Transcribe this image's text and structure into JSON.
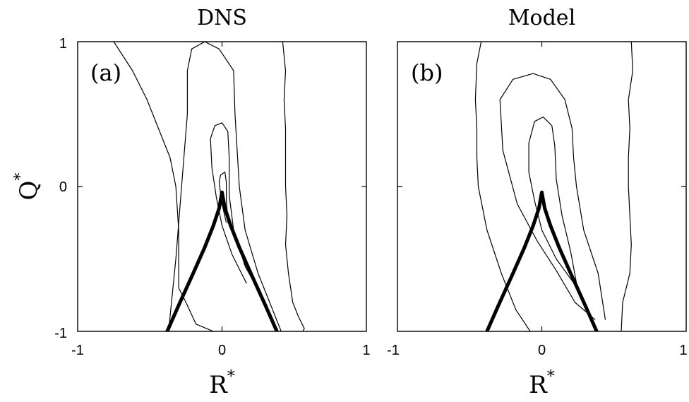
{
  "chart_data": [
    {
      "type": "line",
      "title": "DNS",
      "panel_label": "(a)",
      "xlabel": "R",
      "xlabel_sup": "*",
      "ylabel": "Q",
      "ylabel_sup": "*",
      "xlim": [
        -1,
        1
      ],
      "ylim": [
        -1,
        1
      ],
      "x_ticks": [
        "-1",
        "0",
        "1"
      ],
      "y_ticks": [
        "1",
        "0",
        "-1"
      ],
      "grid": false,
      "series": [
        {
          "role": "contour-outer",
          "x": [
            -0.75,
            -0.62,
            -0.52,
            -0.44,
            -0.36,
            -0.32,
            -0.3,
            -0.3,
            -0.25,
            -0.18,
            -0.06
          ],
          "y": [
            1.0,
            0.8,
            0.6,
            0.4,
            0.2,
            0.0,
            -0.3,
            -0.7,
            -0.8,
            -0.95,
            -1.0
          ]
        },
        {
          "role": "contour-outer",
          "x": [
            0.42,
            0.44,
            0.43,
            0.44,
            0.44,
            0.44,
            0.45,
            0.44,
            0.46,
            0.49,
            0.53,
            0.57,
            0.56
          ],
          "y": [
            1.0,
            0.8,
            0.6,
            0.4,
            0.2,
            0.0,
            -0.2,
            -0.4,
            -0.6,
            -0.8,
            -0.9,
            -0.98,
            -1.0
          ]
        },
        {
          "role": "contour-middle",
          "x": [
            -0.37,
            -0.32,
            -0.28,
            -0.24,
            -0.24,
            -0.21,
            -0.12,
            -0.02,
            0.08,
            0.09,
            0.12,
            0.16,
            0.25,
            0.35,
            0.41
          ],
          "y": [
            -1.0,
            -0.5,
            0.0,
            0.5,
            0.8,
            0.95,
            1.0,
            0.95,
            0.8,
            0.5,
            0.0,
            -0.3,
            -0.6,
            -0.85,
            -1.0
          ]
        },
        {
          "role": "contour-inner",
          "x": [
            0.17,
            0.07,
            0.0,
            -0.04,
            -0.07,
            -0.08,
            -0.05,
            0.0,
            0.04,
            0.05,
            0.05,
            0.08,
            0.16,
            0.27,
            0.39
          ],
          "y": [
            -0.67,
            -0.47,
            -0.27,
            -0.07,
            0.13,
            0.33,
            0.42,
            0.44,
            0.38,
            0.2,
            -0.06,
            -0.3,
            -0.55,
            -0.75,
            -1.0
          ]
        },
        {
          "role": "contour-innermost",
          "x": [
            0.03,
            0.0,
            -0.02,
            -0.01,
            0.02,
            0.03,
            0.03,
            0.04
          ],
          "y": [
            -0.25,
            -0.12,
            0.03,
            0.08,
            0.1,
            0.03,
            -0.08,
            -0.25
          ]
        },
        {
          "role": "vieillefosse-line",
          "x": [
            -0.38,
            -0.3,
            -0.2,
            -0.12,
            -0.06,
            -0.02,
            0.0,
            0.02,
            0.06,
            0.12,
            0.2,
            0.3,
            0.38
          ],
          "y": [
            -1.0,
            -0.82,
            -0.6,
            -0.42,
            -0.27,
            -0.15,
            -0.04,
            -0.15,
            -0.27,
            -0.42,
            -0.6,
            -0.82,
            -1.0
          ]
        }
      ]
    },
    {
      "type": "line",
      "title": "Model",
      "panel_label": "(b)",
      "xlabel": "R",
      "xlabel_sup": "*",
      "ylabel": "",
      "xlim": [
        -1,
        1
      ],
      "ylim": [
        -1,
        1
      ],
      "x_ticks": [
        "-1",
        "0",
        "1"
      ],
      "y_ticks": [],
      "grid": false,
      "series": [
        {
          "role": "contour-outer",
          "x": [
            -0.42,
            -0.45,
            -0.46,
            -0.45,
            -0.45,
            -0.44,
            -0.42,
            -0.38,
            -0.28,
            -0.18,
            -0.08
          ],
          "y": [
            1.0,
            0.85,
            0.6,
            0.4,
            0.2,
            0.0,
            -0.1,
            -0.3,
            -0.6,
            -0.85,
            -1.0
          ]
        },
        {
          "role": "contour-outer",
          "x": [
            0.62,
            0.63,
            0.6,
            0.61,
            0.6,
            0.6,
            0.61,
            0.62,
            0.61,
            0.56,
            0.55
          ],
          "y": [
            1.0,
            0.8,
            0.6,
            0.4,
            0.2,
            0.0,
            -0.2,
            -0.4,
            -0.6,
            -0.8,
            -1.0
          ]
        },
        {
          "role": "contour-middle",
          "x": [
            0.37,
            0.23,
            0.1,
            -0.03,
            -0.17,
            -0.27,
            -0.29,
            -0.2,
            -0.06,
            0.06,
            0.16,
            0.21,
            0.22,
            0.24,
            0.29,
            0.39,
            0.44
          ],
          "y": [
            -0.92,
            -0.8,
            -0.58,
            -0.38,
            -0.12,
            0.25,
            0.6,
            0.74,
            0.78,
            0.74,
            0.6,
            0.4,
            0.2,
            0.0,
            -0.3,
            -0.6,
            -0.92
          ]
        },
        {
          "role": "contour-inner",
          "x": [
            0.26,
            0.1,
            0.0,
            -0.05,
            -0.09,
            -0.09,
            -0.05,
            0.01,
            0.07,
            0.09,
            0.1,
            0.14,
            0.2,
            0.25
          ],
          "y": [
            -0.72,
            -0.5,
            -0.3,
            -0.1,
            0.1,
            0.3,
            0.45,
            0.48,
            0.42,
            0.28,
            0.05,
            -0.2,
            -0.45,
            -0.72
          ]
        },
        {
          "role": "vieillefosse-line",
          "x": [
            -0.38,
            -0.3,
            -0.2,
            -0.12,
            -0.06,
            -0.02,
            0.0,
            0.02,
            0.06,
            0.12,
            0.2,
            0.3,
            0.38
          ],
          "y": [
            -1.0,
            -0.82,
            -0.6,
            -0.42,
            -0.27,
            -0.15,
            -0.04,
            -0.15,
            -0.27,
            -0.42,
            -0.6,
            -0.82,
            -1.0
          ]
        }
      ]
    }
  ]
}
